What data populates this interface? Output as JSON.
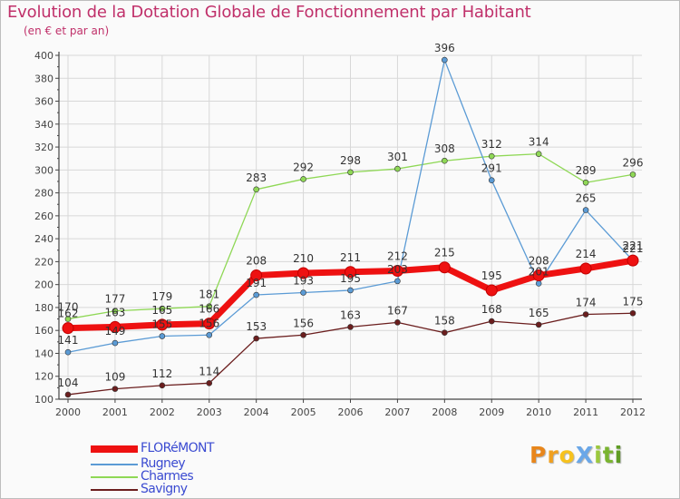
{
  "title": "Evolution de la Dotation Globale de Fonctionnement par Habitant",
  "subtitle": "(en € et par an)",
  "colors": {
    "title": "#c0306a",
    "axis": "#444444",
    "grid": "#d8d8d8",
    "legend_text": "#3b4bd1"
  },
  "legend": [
    {
      "label": "FLORéMONT",
      "color": "#ee1111",
      "width": 8
    },
    {
      "label": "Rugney",
      "color": "#5b9bd5",
      "width": 1.5
    },
    {
      "label": "Charmes",
      "color": "#8fd856",
      "width": 1.5
    },
    {
      "label": "Savigny",
      "color": "#6b1e1e",
      "width": 1.5
    }
  ],
  "logo": {
    "text": "ProXiti",
    "letters": [
      {
        "ch": "P",
        "color": "#e8861b"
      },
      {
        "ch": "r",
        "color": "#f0a020"
      },
      {
        "ch": "o",
        "color": "#f7c21d"
      },
      {
        "ch": "X",
        "color": "#6aa7e8"
      },
      {
        "ch": "i",
        "color": "#9cc93c"
      },
      {
        "ch": "t",
        "color": "#7ab430"
      },
      {
        "ch": "i",
        "color": "#5f9c24"
      }
    ]
  },
  "chart_data": {
    "type": "line",
    "title": "Evolution de la Dotation Globale de Fonctionnement par Habitant",
    "ylabel": "(en € et par an)",
    "xlabel": "",
    "x": [
      "2000",
      "2001",
      "2002",
      "2003",
      "2004",
      "2005",
      "2006",
      "2007",
      "2008",
      "2009",
      "2010",
      "2011",
      "2012"
    ],
    "ylim": [
      100,
      400
    ],
    "yticks": [
      100,
      120,
      140,
      160,
      180,
      200,
      220,
      240,
      260,
      280,
      300,
      320,
      340,
      360,
      380,
      400
    ],
    "grid": true,
    "legend_position": "bottom-left",
    "series": [
      {
        "name": "Savigny",
        "color": "#6b1e1e",
        "width": 1.3,
        "marker": 3,
        "values": [
          104,
          109,
          112,
          114,
          153,
          156,
          163,
          167,
          158,
          168,
          165,
          174,
          175
        ],
        "label_offset": -9
      },
      {
        "name": "Charmes",
        "color": "#8fd856",
        "width": 1.3,
        "marker": 3,
        "values": [
          170,
          177,
          179,
          181,
          283,
          292,
          298,
          301,
          308,
          312,
          314,
          289,
          296
        ],
        "label_offset": -9
      },
      {
        "name": "Rugney",
        "color": "#5b9bd5",
        "width": 1.3,
        "marker": 3,
        "values": [
          141,
          149,
          155,
          156,
          191,
          193,
          195,
          203,
          396,
          291,
          201,
          265,
          221
        ],
        "label_offset": -9
      },
      {
        "name": "FLORéMONT",
        "color": "#ee1111",
        "width": 7,
        "marker": 6,
        "values": [
          162,
          163,
          165,
          166,
          208,
          210,
          211,
          212,
          215,
          195,
          208,
          214,
          221
        ],
        "label_offset": -12
      }
    ]
  }
}
